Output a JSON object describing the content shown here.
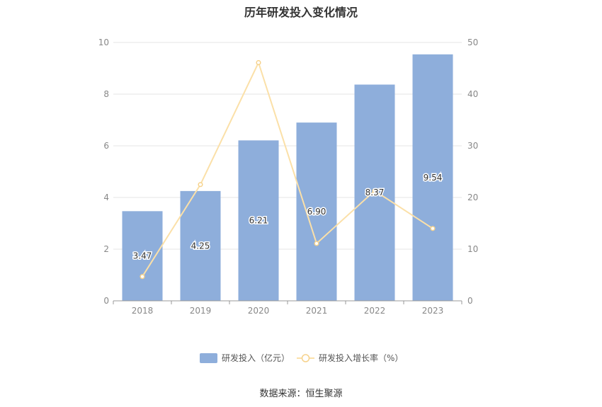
{
  "title": "历年研发投入变化情况",
  "source": "数据来源：恒生聚源",
  "chart_data": {
    "type": "bar",
    "categories": [
      "2018",
      "2019",
      "2020",
      "2021",
      "2022",
      "2023"
    ],
    "series": [
      {
        "name": "研发投入（亿元）",
        "type": "bar",
        "axis": "left",
        "values": [
          3.47,
          4.25,
          6.21,
          6.9,
          8.37,
          9.54
        ],
        "labels": [
          "3.47",
          "4.25",
          "6.21",
          "6.90",
          "8.37",
          "9.54"
        ],
        "color": "#8eaedb"
      },
      {
        "name": "研发投入增长率（%）",
        "type": "line",
        "axis": "right",
        "values": [
          4.7,
          22.5,
          46.1,
          11.1,
          21.3,
          14.0
        ],
        "color": "#fbe0a8"
      }
    ],
    "y_left": {
      "min": 0,
      "max": 10,
      "ticks": [
        "0",
        "2",
        "4",
        "6",
        "8",
        "10"
      ]
    },
    "y_right": {
      "min": 0,
      "max": 50,
      "ticks": [
        "0",
        "10",
        "20",
        "30",
        "40",
        "50"
      ]
    },
    "grid": true,
    "legend_position": "bottom"
  }
}
